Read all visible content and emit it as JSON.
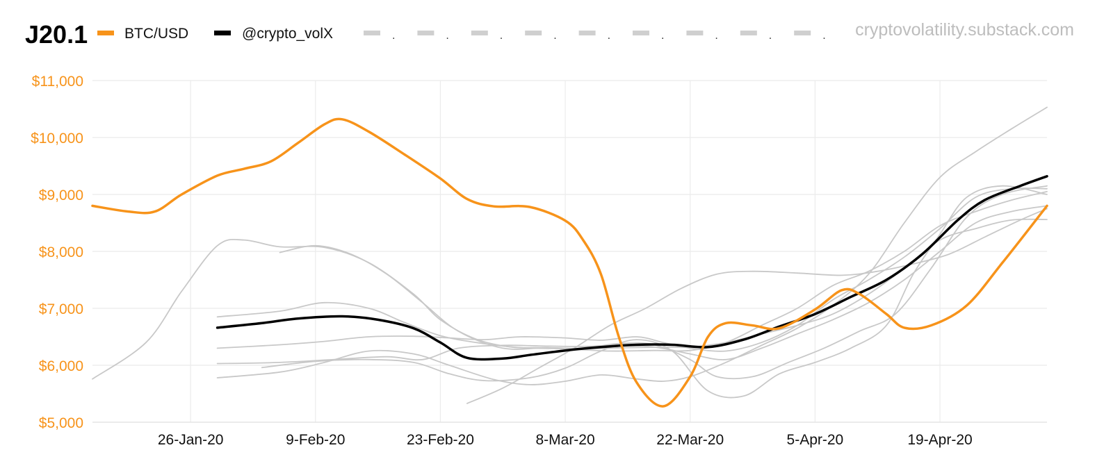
{
  "header": {
    "title": "J20.1",
    "source": "cryptovolatility.substack.com"
  },
  "chart_data": {
    "type": "line",
    "title": "J20.1",
    "xlabel": "",
    "ylabel": "",
    "ylim": [
      5000,
      11000
    ],
    "y_ticks": [
      {
        "value": 5000,
        "label": "$5,000"
      },
      {
        "value": 6000,
        "label": "$6,000"
      },
      {
        "value": 7000,
        "label": "$7,000"
      },
      {
        "value": 8000,
        "label": "$8,000"
      },
      {
        "value": 9000,
        "label": "$9,000"
      },
      {
        "value": 10000,
        "label": "$10,000"
      },
      {
        "value": 11000,
        "label": "$11,000"
      }
    ],
    "x_range": [
      "2020-01-15",
      "2020-05-01"
    ],
    "x_ticks": [
      {
        "date": "2020-01-26",
        "label": "26-Jan-20"
      },
      {
        "date": "2020-02-09",
        "label": "9-Feb-20"
      },
      {
        "date": "2020-02-23",
        "label": "23-Feb-20"
      },
      {
        "date": "2020-03-08",
        "label": "8-Mar-20"
      },
      {
        "date": "2020-03-22",
        "label": "22-Mar-20"
      },
      {
        "date": "2020-04-05",
        "label": "5-Apr-20"
      },
      {
        "date": "2020-04-19",
        "label": "19-Apr-20"
      }
    ],
    "grid": true,
    "legend": {
      "placement": "top",
      "items": [
        {
          "label": "BTC/USD",
          "color": "#f7931a"
        },
        {
          "label": "@crypto_volX",
          "color": "#000000"
        }
      ],
      "dashed_markers": [
        ".",
        ".",
        ".",
        ".",
        ".",
        ".",
        ".",
        ".",
        "."
      ]
    },
    "series": [
      {
        "name": "BTC/USD",
        "color": "#f7931a",
        "width": 3.5,
        "points": [
          [
            "2020-01-15",
            8800
          ],
          [
            "2020-01-19",
            8700
          ],
          [
            "2020-01-22",
            8700
          ],
          [
            "2020-01-25",
            9000
          ],
          [
            "2020-01-29",
            9330
          ],
          [
            "2020-02-01",
            9450
          ],
          [
            "2020-02-04",
            9580
          ],
          [
            "2020-02-07",
            9900
          ],
          [
            "2020-02-10",
            10230
          ],
          [
            "2020-02-12",
            10320
          ],
          [
            "2020-02-15",
            10100
          ],
          [
            "2020-02-19",
            9700
          ],
          [
            "2020-02-23",
            9280
          ],
          [
            "2020-02-26",
            8920
          ],
          [
            "2020-02-29",
            8790
          ],
          [
            "2020-03-04",
            8780
          ],
          [
            "2020-03-08",
            8540
          ],
          [
            "2020-03-10",
            8200
          ],
          [
            "2020-03-12",
            7600
          ],
          [
            "2020-03-14",
            6500
          ],
          [
            "2020-03-16",
            5700
          ],
          [
            "2020-03-19",
            5280
          ],
          [
            "2020-03-22",
            5800
          ],
          [
            "2020-03-24",
            6500
          ],
          [
            "2020-03-26",
            6740
          ],
          [
            "2020-03-29",
            6700
          ],
          [
            "2020-04-01",
            6650
          ],
          [
            "2020-04-05",
            6980
          ],
          [
            "2020-04-08",
            7320
          ],
          [
            "2020-04-10",
            7250
          ],
          [
            "2020-04-13",
            6900
          ],
          [
            "2020-04-15",
            6660
          ],
          [
            "2020-04-18",
            6700
          ],
          [
            "2020-04-22",
            7050
          ],
          [
            "2020-04-26",
            7800
          ],
          [
            "2020-05-01",
            8800
          ]
        ]
      },
      {
        "name": "@crypto_volX",
        "color": "#000000",
        "width": 3.5,
        "points": [
          [
            "2020-01-29",
            6660
          ],
          [
            "2020-02-03",
            6740
          ],
          [
            "2020-02-07",
            6820
          ],
          [
            "2020-02-12",
            6860
          ],
          [
            "2020-02-16",
            6800
          ],
          [
            "2020-02-20",
            6650
          ],
          [
            "2020-02-23",
            6400
          ],
          [
            "2020-02-26",
            6130
          ],
          [
            "2020-03-01",
            6120
          ],
          [
            "2020-03-04",
            6180
          ],
          [
            "2020-03-08",
            6260
          ],
          [
            "2020-03-12",
            6320
          ],
          [
            "2020-03-16",
            6360
          ],
          [
            "2020-03-20",
            6360
          ],
          [
            "2020-03-24",
            6320
          ],
          [
            "2020-03-28",
            6450
          ],
          [
            "2020-04-01",
            6680
          ],
          [
            "2020-04-05",
            6900
          ],
          [
            "2020-04-09",
            7200
          ],
          [
            "2020-04-13",
            7500
          ],
          [
            "2020-04-17",
            7950
          ],
          [
            "2020-04-21",
            8550
          ],
          [
            "2020-04-24",
            8900
          ],
          [
            "2020-04-28",
            9150
          ],
          [
            "2020-05-01",
            9320
          ]
        ]
      },
      {
        "name": "",
        "color": "#c8c8c8",
        "width": 1.8,
        "points": [
          [
            "2020-01-15",
            5760
          ],
          [
            "2020-01-21",
            6400
          ],
          [
            "2020-01-25",
            7300
          ],
          [
            "2020-01-29",
            8100
          ],
          [
            "2020-02-01",
            8200
          ],
          [
            "2020-02-05",
            8080
          ],
          [
            "2020-02-10",
            8070
          ],
          [
            "2020-02-15",
            7800
          ],
          [
            "2020-02-20",
            7250
          ],
          [
            "2020-02-23",
            6800
          ],
          [
            "2020-02-27",
            6460
          ],
          [
            "2020-03-02",
            6320
          ],
          [
            "2020-03-06",
            6310
          ],
          [
            "2020-03-10",
            6300
          ],
          [
            "2020-03-14",
            6380
          ],
          [
            "2020-03-18",
            6360
          ],
          [
            "2020-03-22",
            6100
          ],
          [
            "2020-03-25",
            5800
          ],
          [
            "2020-03-29",
            5800
          ],
          [
            "2020-04-02",
            6050
          ],
          [
            "2020-04-06",
            6300
          ],
          [
            "2020-04-10",
            6600
          ],
          [
            "2020-04-14",
            6900
          ],
          [
            "2020-04-18",
            7700
          ],
          [
            "2020-04-22",
            8600
          ],
          [
            "2020-04-26",
            9000
          ],
          [
            "2020-05-01",
            9150
          ]
        ]
      },
      {
        "name": "",
        "color": "#c8c8c8",
        "width": 1.8,
        "points": [
          [
            "2020-02-05",
            7980
          ],
          [
            "2020-02-09",
            8100
          ],
          [
            "2020-02-13",
            7950
          ],
          [
            "2020-02-17",
            7600
          ],
          [
            "2020-02-21",
            7100
          ],
          [
            "2020-02-25",
            6600
          ],
          [
            "2020-03-01",
            6300
          ],
          [
            "2020-03-06",
            6310
          ],
          [
            "2020-03-10",
            6290
          ],
          [
            "2020-03-15",
            6310
          ],
          [
            "2020-03-19",
            6320
          ],
          [
            "2020-03-22",
            6320
          ],
          [
            "2020-03-26",
            6400
          ],
          [
            "2020-03-30",
            6550
          ],
          [
            "2020-04-03",
            6700
          ],
          [
            "2020-04-07",
            6900
          ],
          [
            "2020-04-11",
            7250
          ],
          [
            "2020-04-15",
            7700
          ],
          [
            "2020-04-19",
            8200
          ],
          [
            "2020-04-23",
            8400
          ],
          [
            "2020-04-27",
            8550
          ],
          [
            "2020-05-01",
            8560
          ]
        ]
      },
      {
        "name": "",
        "color": "#c8c8c8",
        "width": 1.8,
        "points": [
          [
            "2020-01-29",
            6850
          ],
          [
            "2020-02-05",
            6950
          ],
          [
            "2020-02-10",
            7100
          ],
          [
            "2020-02-15",
            7000
          ],
          [
            "2020-02-19",
            6750
          ],
          [
            "2020-02-23",
            6520
          ],
          [
            "2020-02-27",
            6400
          ],
          [
            "2020-03-03",
            6310
          ],
          [
            "2020-03-08",
            6290
          ],
          [
            "2020-03-13",
            6250
          ],
          [
            "2020-03-18",
            6260
          ],
          [
            "2020-03-22",
            6260
          ],
          [
            "2020-03-26",
            6400
          ],
          [
            "2020-03-30",
            6700
          ],
          [
            "2020-04-03",
            7000
          ],
          [
            "2020-04-07",
            7400
          ],
          [
            "2020-04-11",
            7650
          ],
          [
            "2020-04-15",
            8000
          ],
          [
            "2020-04-19",
            8450
          ],
          [
            "2020-04-23",
            8700
          ],
          [
            "2020-04-27",
            8900
          ],
          [
            "2020-05-01",
            9050
          ]
        ]
      },
      {
        "name": "",
        "color": "#c8c8c8",
        "width": 1.8,
        "points": [
          [
            "2020-01-29",
            6300
          ],
          [
            "2020-02-05",
            6360
          ],
          [
            "2020-02-10",
            6420
          ],
          [
            "2020-02-15",
            6500
          ],
          [
            "2020-02-20",
            6510
          ],
          [
            "2020-02-24",
            6480
          ],
          [
            "2020-02-28",
            6450
          ],
          [
            "2020-03-03",
            6500
          ],
          [
            "2020-03-08",
            6480
          ],
          [
            "2020-03-12",
            6440
          ],
          [
            "2020-03-16",
            6500
          ],
          [
            "2020-03-19",
            6400
          ],
          [
            "2020-03-22",
            6300
          ],
          [
            "2020-03-26",
            6250
          ],
          [
            "2020-03-30",
            6400
          ],
          [
            "2020-04-03",
            6700
          ],
          [
            "2020-04-07",
            7150
          ],
          [
            "2020-04-11",
            7500
          ],
          [
            "2020-04-15",
            7900
          ],
          [
            "2020-04-19",
            8400
          ],
          [
            "2020-04-23",
            8950
          ],
          [
            "2020-04-27",
            9100
          ],
          [
            "2020-05-01",
            9100
          ]
        ]
      },
      {
        "name": "",
        "color": "#c8c8c8",
        "width": 1.8,
        "points": [
          [
            "2020-01-29",
            6030
          ],
          [
            "2020-02-05",
            6050
          ],
          [
            "2020-02-11",
            6100
          ],
          [
            "2020-02-17",
            6150
          ],
          [
            "2020-02-21",
            6100
          ],
          [
            "2020-02-25",
            6300
          ],
          [
            "2020-03-01",
            6350
          ],
          [
            "2020-03-05",
            6340
          ],
          [
            "2020-03-10",
            6330
          ],
          [
            "2020-03-14",
            6350
          ],
          [
            "2020-03-18",
            6320
          ],
          [
            "2020-03-22",
            6200
          ],
          [
            "2020-03-26",
            6100
          ],
          [
            "2020-03-30",
            6300
          ],
          [
            "2020-04-03",
            6550
          ],
          [
            "2020-04-07",
            6800
          ],
          [
            "2020-04-11",
            7100
          ],
          [
            "2020-04-15",
            7500
          ],
          [
            "2020-04-19",
            8000
          ],
          [
            "2020-04-23",
            8500
          ],
          [
            "2020-04-27",
            8700
          ],
          [
            "2020-05-01",
            8800
          ]
        ]
      },
      {
        "name": "",
        "color": "#c8c8c8",
        "width": 1.8,
        "points": [
          [
            "2020-01-29",
            5780
          ],
          [
            "2020-02-05",
            5880
          ],
          [
            "2020-02-10",
            6050
          ],
          [
            "2020-02-15",
            6250
          ],
          [
            "2020-02-20",
            6200
          ],
          [
            "2020-02-24",
            6000
          ],
          [
            "2020-02-29",
            5750
          ],
          [
            "2020-03-04",
            5660
          ],
          [
            "2020-03-08",
            5720
          ],
          [
            "2020-03-12",
            5830
          ],
          [
            "2020-03-16",
            5760
          ],
          [
            "2020-03-19",
            5720
          ],
          [
            "2020-03-22",
            5800
          ],
          [
            "2020-03-26",
            6050
          ],
          [
            "2020-03-30",
            6350
          ],
          [
            "2020-04-03",
            6650
          ],
          [
            "2020-04-07",
            7050
          ],
          [
            "2020-04-11",
            7600
          ],
          [
            "2020-04-15",
            8500
          ],
          [
            "2020-04-19",
            9300
          ],
          [
            "2020-04-23",
            9750
          ],
          [
            "2020-04-27",
            10150
          ],
          [
            "2020-05-01",
            10530
          ]
        ]
      },
      {
        "name": "",
        "color": "#c8c8c8",
        "width": 1.8,
        "points": [
          [
            "2020-02-03",
            5960
          ],
          [
            "2020-02-09",
            6070
          ],
          [
            "2020-02-15",
            6100
          ],
          [
            "2020-02-20",
            6050
          ],
          [
            "2020-02-24",
            5850
          ],
          [
            "2020-02-28",
            5730
          ],
          [
            "2020-03-04",
            5780
          ],
          [
            "2020-03-08",
            5950
          ],
          [
            "2020-03-12",
            6250
          ],
          [
            "2020-03-16",
            6450
          ],
          [
            "2020-03-20",
            6250
          ],
          [
            "2020-03-24",
            5550
          ],
          [
            "2020-03-28",
            5460
          ],
          [
            "2020-04-01",
            5850
          ],
          [
            "2020-04-05",
            6050
          ],
          [
            "2020-04-09",
            6300
          ],
          [
            "2020-04-13",
            6700
          ],
          [
            "2020-04-16",
            7600
          ],
          [
            "2020-04-19",
            8300
          ],
          [
            "2020-04-22",
            8950
          ],
          [
            "2020-04-26",
            9150
          ],
          [
            "2020-05-01",
            9000
          ]
        ]
      },
      {
        "name": "",
        "color": "#c8c8c8",
        "width": 1.8,
        "points": [
          [
            "2020-02-26",
            5330
          ],
          [
            "2020-03-01",
            5600
          ],
          [
            "2020-03-05",
            5950
          ],
          [
            "2020-03-09",
            6300
          ],
          [
            "2020-03-13",
            6700
          ],
          [
            "2020-03-17",
            7000
          ],
          [
            "2020-03-21",
            7350
          ],
          [
            "2020-03-25",
            7600
          ],
          [
            "2020-03-29",
            7650
          ],
          [
            "2020-04-03",
            7620
          ],
          [
            "2020-04-08",
            7580
          ],
          [
            "2020-04-12",
            7650
          ],
          [
            "2020-04-16",
            7780
          ],
          [
            "2020-04-20",
            7950
          ],
          [
            "2020-04-24",
            8250
          ],
          [
            "2020-04-28",
            8550
          ],
          [
            "2020-05-01",
            8750
          ]
        ]
      }
    ]
  }
}
